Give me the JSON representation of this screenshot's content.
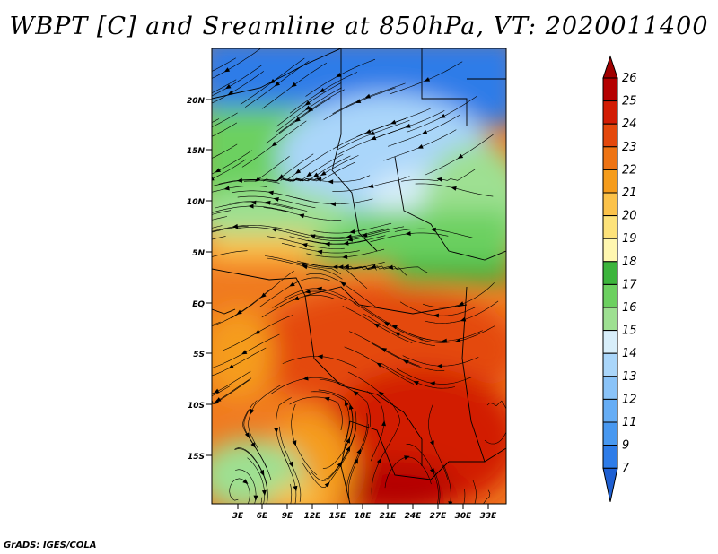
{
  "title": "WBPT [C] and Sreamline at 850hPa, VT: 2020011400",
  "credit": "GrADS: IGES/COLA",
  "map": {
    "lat_labels": [
      "20N",
      "15N",
      "10N",
      "5N",
      "EQ",
      "5S",
      "10S",
      "15S"
    ],
    "lon_labels": [
      "3E",
      "6E",
      "9E",
      "12E",
      "15E",
      "18E",
      "21E",
      "24E",
      "27E",
      "30E",
      "33E"
    ]
  },
  "colorbar": {
    "levels": [
      "7",
      "9",
      "11",
      "12",
      "13",
      "14",
      "15",
      "16",
      "17",
      "18",
      "19",
      "20",
      "21",
      "22",
      "23",
      "24",
      "25",
      "26"
    ],
    "colors": [
      "#1e5fd2",
      "#2e7ce8",
      "#4898f0",
      "#66adf5",
      "#8ac3f8",
      "#aad6fa",
      "#d8eefa",
      "#9ee092",
      "#6cd060",
      "#3cb43c",
      "#fff7b0",
      "#fde27a",
      "#fbc24a",
      "#f59c1c",
      "#ee7414",
      "#e4480c",
      "#d21c04",
      "#b40000",
      "#a00000"
    ]
  }
}
